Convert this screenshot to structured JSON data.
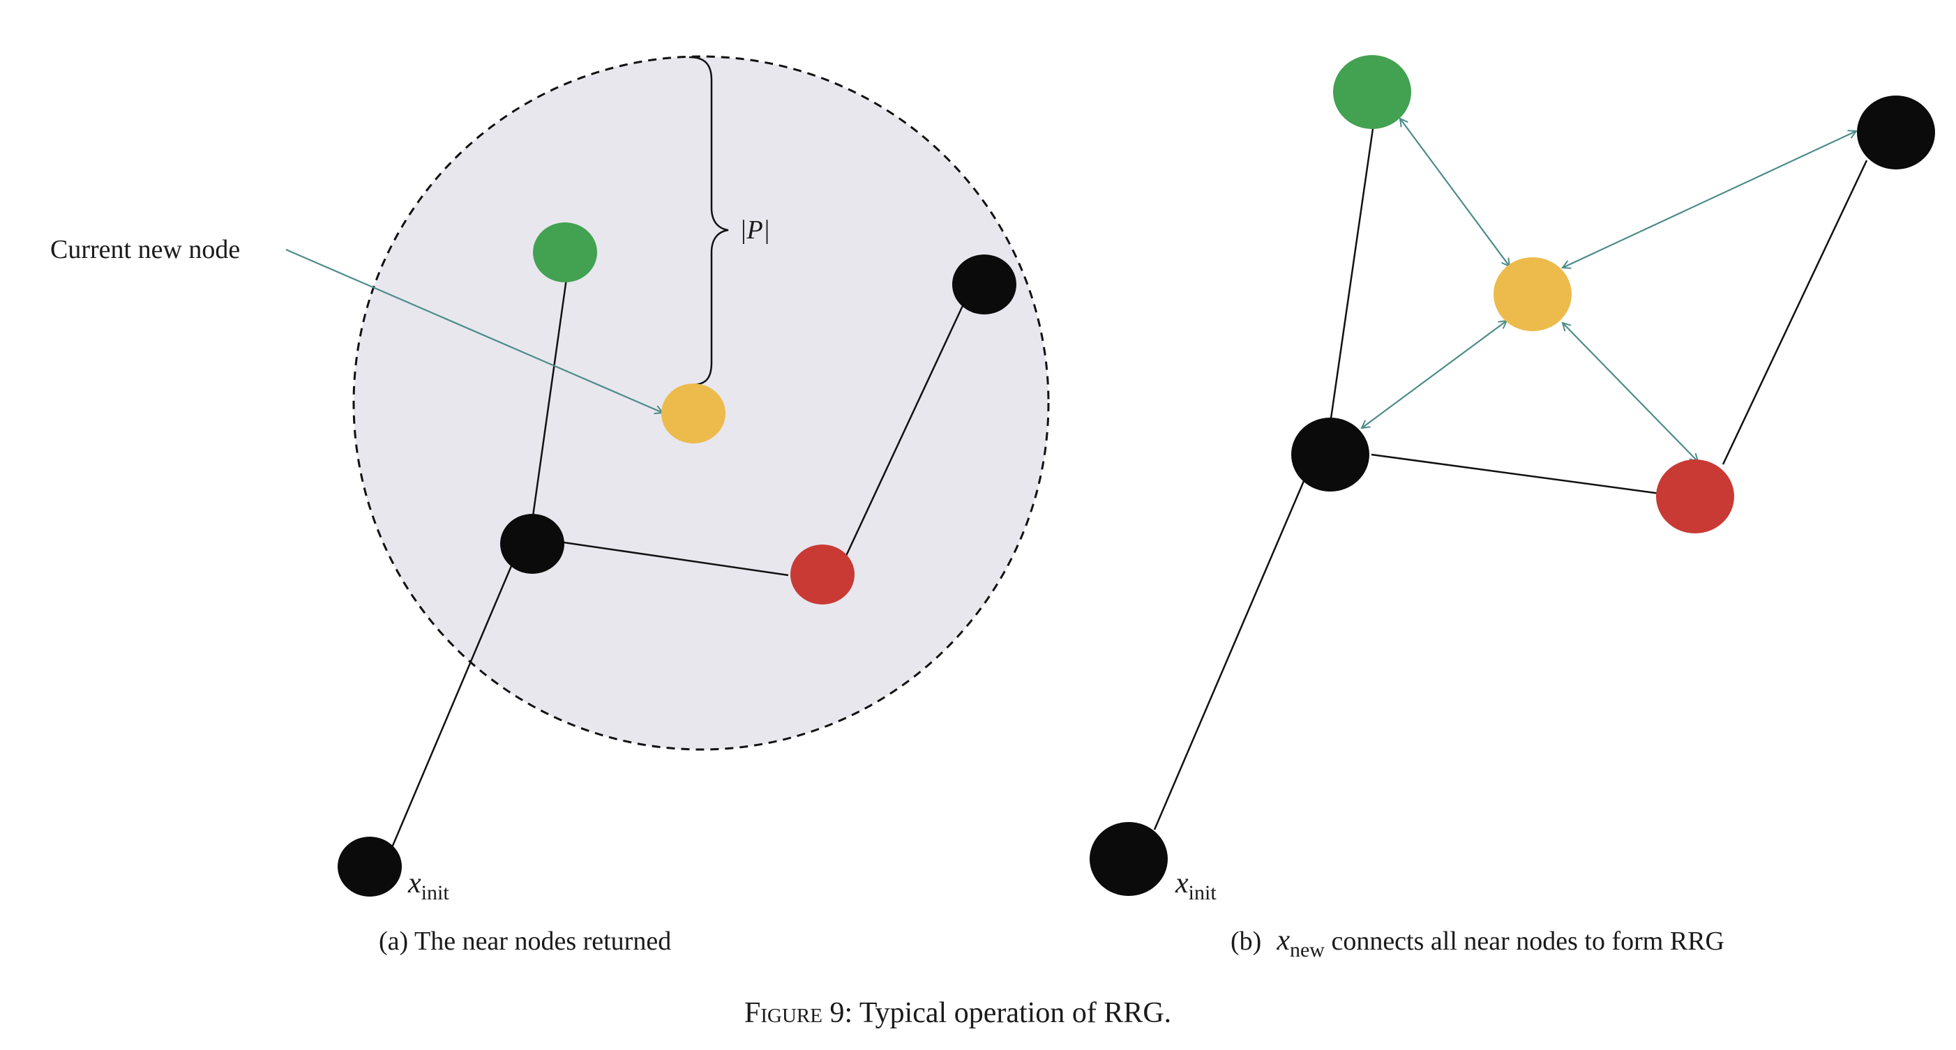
{
  "panel_a": {
    "callout": "Current new node",
    "bracket_label": "|P|",
    "x_init": {
      "base": "x",
      "sub": "init"
    },
    "caption": "(a)  The near nodes returned"
  },
  "panel_b": {
    "x_init": {
      "base": "x",
      "sub": "init"
    },
    "caption_prefix": "(b)",
    "caption_var": {
      "base": "x",
      "sub": "new"
    },
    "caption_rest": " connects all near nodes to form RRG"
  },
  "figure_caption": {
    "label": "Figure 9",
    "text": ": Typical operation of RRG."
  },
  "colors": {
    "green": "#43a152",
    "yellow": "#ecbb4c",
    "red": "#c93a35",
    "black": "#0b0b0b",
    "teal": "#4c8c88",
    "region_fill": "#e8e7ee"
  }
}
